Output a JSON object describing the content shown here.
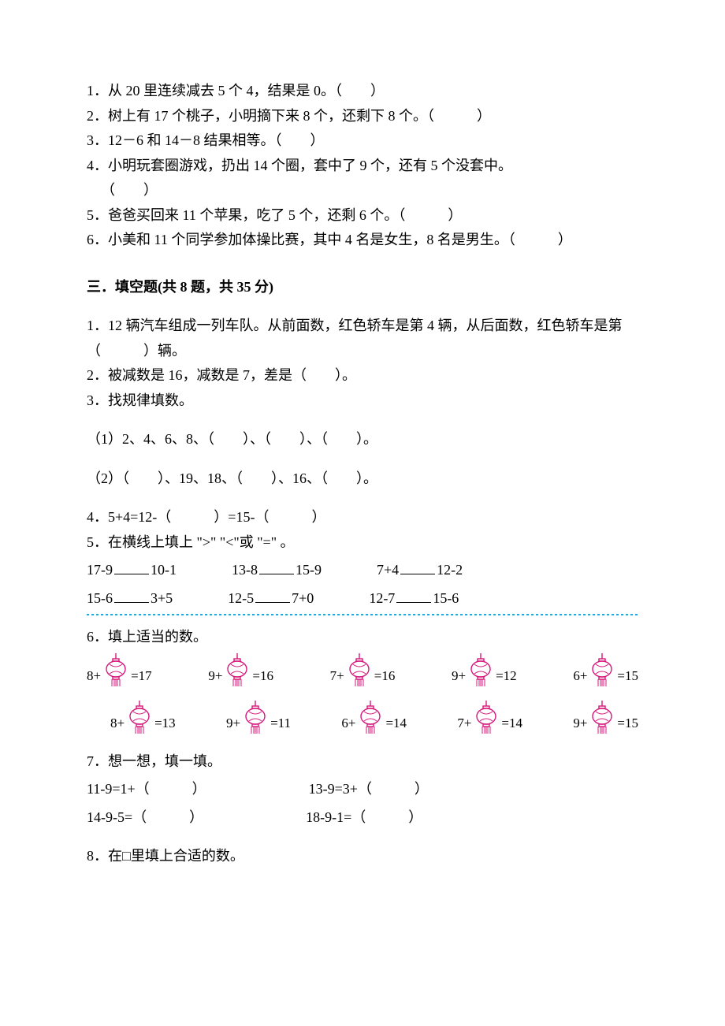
{
  "colors": {
    "text": "#000000",
    "background": "#ffffff",
    "lantern": "#d6187d",
    "dash": "#2aa3d6"
  },
  "typography": {
    "body_fontsize_pt": 14,
    "heading_fontsize_pt": 14,
    "font_family": "SimSun"
  },
  "judgement": {
    "items": [
      "1．从 20 里连续减去 5 个 4，结果是 0。（　　）",
      "2．树上有 17 个桃子，小明摘下来 8 个，还剩下 8 个。（　　　）",
      "3．12－6 和 14－8 结果相等。（　　）",
      "4．小明玩套圈游戏，扔出 14 个圈，套中了 9 个，还有 5 个没套中。",
      "（　　）",
      "5．爸爸买回来 11 个苹果，吃了 5 个，还剩 6 个。（　　　）",
      "6．小美和 11 个同学参加体操比赛，其中 4 名是女生，8 名是男生。（　　　）"
    ]
  },
  "section3_heading": "三．填空题(共 8 题，共 35 分)",
  "fill": {
    "q1": "1．12 辆汽车组成一列车队。从前面数，红色轿车是第 4 辆，从后面数，红色轿车是第（　　　）辆。",
    "q2": "2．被减数是 16，减数是 7，差是（　　）。",
    "q3_lead": "3．找规律填数。",
    "q3_a": "（1）2、4、6、8、（　　）、（　　）、（　　）。",
    "q3_b": "（2）（　　）、19、18、（　　）、16、（　　）。",
    "q4": "4．5+4=12-（　　　）=15-（　　　）",
    "q5_lead": "5．在横线上填上 \">\" \"<\"或 \"=\" 。",
    "q5_rows": [
      [
        "17-9",
        "10-1",
        "13-8",
        "15-9",
        "7+4",
        "12-2"
      ],
      [
        "15-6",
        "3+5",
        "12-5",
        "7+0",
        "12-7",
        "15-6"
      ]
    ],
    "q6_lead": "6．填上适当的数。",
    "q6_rows": [
      [
        {
          "left": "8+",
          "right": "=17"
        },
        {
          "left": "9+",
          "right": "=16"
        },
        {
          "left": "7+",
          "right": "=16"
        },
        {
          "left": "9+",
          "right": "=12"
        },
        {
          "left": "6+",
          "right": "=15"
        }
      ],
      [
        {
          "left": "8+",
          "right": "=13"
        },
        {
          "left": "9+",
          "right": "=11"
        },
        {
          "left": "6+",
          "right": "=14"
        },
        {
          "left": "7+",
          "right": "=14"
        },
        {
          "left": "9+",
          "right": "=15"
        }
      ]
    ],
    "q7_lead": "7．想一想，填一填。",
    "q7_rows": [
      [
        "11-9=1+（　　　）",
        "13-9=3+（　　　）"
      ],
      [
        "14-9-5=（　　　）",
        "18-9-1=（　　　）"
      ]
    ],
    "q8_lead": "8．在□里填上合适的数。"
  }
}
